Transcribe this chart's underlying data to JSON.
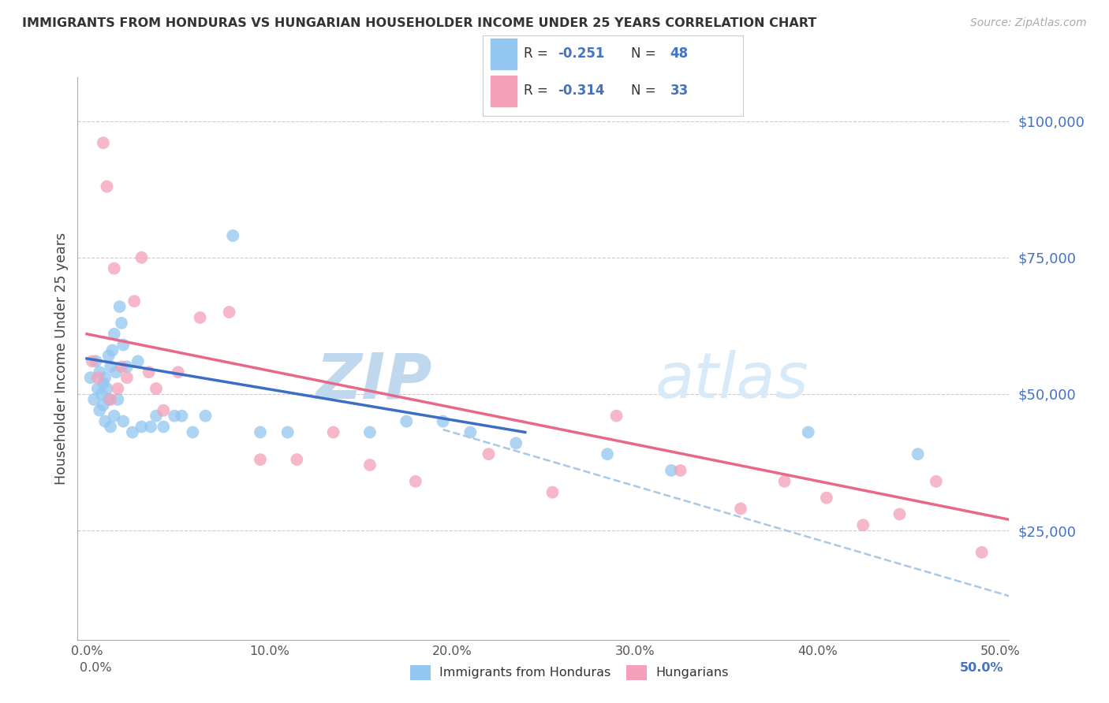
{
  "title": "IMMIGRANTS FROM HONDURAS VS HUNGARIAN HOUSEHOLDER INCOME UNDER 25 YEARS CORRELATION CHART",
  "source": "Source: ZipAtlas.com",
  "ylabel": "Householder Income Under 25 years",
  "legend_label1": "Immigrants from Honduras",
  "legend_label2": "Hungarians",
  "ytick_labels": [
    "$25,000",
    "$50,000",
    "$75,000",
    "$100,000"
  ],
  "ytick_values": [
    25000,
    50000,
    75000,
    100000
  ],
  "ymin": 5000,
  "ymax": 108000,
  "xmin": -0.005,
  "xmax": 0.505,
  "color_blue": "#93C6F0",
  "color_pink": "#F4A0B8",
  "color_blue_line": "#3B6EC4",
  "color_pink_line": "#E8688A",
  "color_dashed": "#A8C8E8",
  "watermark_zip": "ZIP",
  "watermark_atlas": "atlas",
  "watermark_color": "#C8DCF0",
  "blue_scatter_x": [
    0.002,
    0.004,
    0.005,
    0.006,
    0.007,
    0.007,
    0.008,
    0.009,
    0.009,
    0.01,
    0.01,
    0.011,
    0.012,
    0.012,
    0.013,
    0.013,
    0.014,
    0.015,
    0.015,
    0.016,
    0.017,
    0.018,
    0.019,
    0.02,
    0.02,
    0.022,
    0.025,
    0.028,
    0.03,
    0.035,
    0.038,
    0.042,
    0.048,
    0.052,
    0.058,
    0.065,
    0.08,
    0.095,
    0.11,
    0.155,
    0.175,
    0.195,
    0.21,
    0.235,
    0.285,
    0.32,
    0.395,
    0.455
  ],
  "blue_scatter_y": [
    53000,
    49000,
    56000,
    51000,
    47000,
    54000,
    50000,
    52000,
    48000,
    53000,
    45000,
    51000,
    57000,
    49000,
    44000,
    55000,
    58000,
    61000,
    46000,
    54000,
    49000,
    66000,
    63000,
    45000,
    59000,
    55000,
    43000,
    56000,
    44000,
    44000,
    46000,
    44000,
    46000,
    46000,
    43000,
    46000,
    79000,
    43000,
    43000,
    43000,
    45000,
    45000,
    43000,
    41000,
    39000,
    36000,
    43000,
    39000
  ],
  "pink_scatter_x": [
    0.003,
    0.006,
    0.009,
    0.011,
    0.013,
    0.015,
    0.017,
    0.019,
    0.022,
    0.026,
    0.03,
    0.034,
    0.038,
    0.042,
    0.05,
    0.062,
    0.078,
    0.095,
    0.115,
    0.135,
    0.155,
    0.18,
    0.22,
    0.255,
    0.29,
    0.325,
    0.358,
    0.382,
    0.405,
    0.425,
    0.445,
    0.465,
    0.49
  ],
  "pink_scatter_y": [
    56000,
    53000,
    96000,
    88000,
    49000,
    73000,
    51000,
    55000,
    53000,
    67000,
    75000,
    54000,
    51000,
    47000,
    54000,
    64000,
    65000,
    38000,
    38000,
    43000,
    37000,
    34000,
    39000,
    32000,
    46000,
    36000,
    29000,
    34000,
    31000,
    26000,
    28000,
    34000,
    21000
  ],
  "blue_line_x": [
    0.0,
    0.24
  ],
  "blue_line_y": [
    56500,
    43000
  ],
  "pink_line_x": [
    0.0,
    0.505
  ],
  "pink_line_y": [
    61000,
    27000
  ],
  "dashed_line_x": [
    0.195,
    0.505
  ],
  "dashed_line_y": [
    43500,
    13000
  ],
  "xtick_positions": [
    0.0,
    0.1,
    0.2,
    0.3,
    0.4,
    0.5
  ],
  "xtick_labels": [
    "0.0%",
    "10.0%",
    "20.0%",
    "30.0%",
    "40.0%",
    "50.0%"
  ],
  "xlabel_bottom_left": "0.0%",
  "xlabel_bottom_right": "50.0%"
}
